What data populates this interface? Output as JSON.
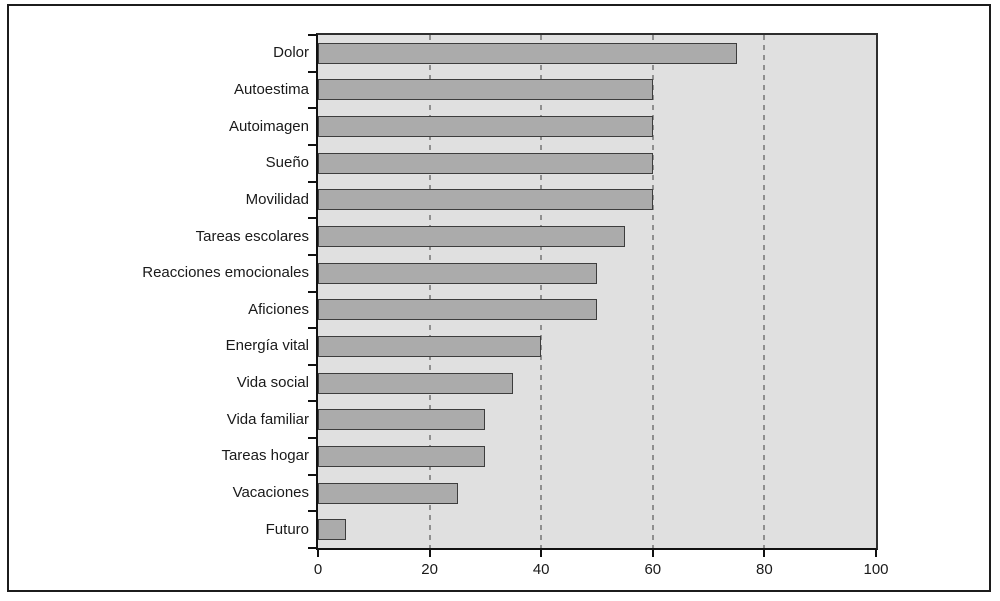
{
  "chart_data": {
    "type": "bar",
    "orientation": "horizontal",
    "title": "",
    "xlabel": "",
    "ylabel": "",
    "categories": [
      "Dolor",
      "Autoestima",
      "Autoimagen",
      "Sueño",
      "Movilidad",
      "Tareas escolares",
      "Reacciones emocionales",
      "Aficiones",
      "Energía vital",
      "Vida social",
      "Vida familiar",
      "Tareas hogar",
      "Vacaciones",
      "Futuro"
    ],
    "values": [
      75,
      60,
      60,
      60,
      60,
      55,
      50,
      50,
      40,
      35,
      30,
      30,
      25,
      5
    ],
    "xlim": [
      0,
      100
    ],
    "xticks": [
      "0",
      "20",
      "40",
      "60",
      "80",
      "100"
    ],
    "xtick_values": [
      0,
      20,
      40,
      60,
      80,
      100
    ],
    "gridline_values": [
      20,
      40,
      60,
      80
    ],
    "grid_style": "dashed",
    "legend": "none",
    "colors": {
      "bar_fill": "#ababab",
      "bar_border": "#3d3d3d",
      "plot_background": "#e0e0e0",
      "gridline": "#8f8f8f",
      "axis": "#111111",
      "frame_border": "#1c1c1c",
      "page_background": "#ffffff",
      "label_text": "#1a1a1a"
    }
  }
}
